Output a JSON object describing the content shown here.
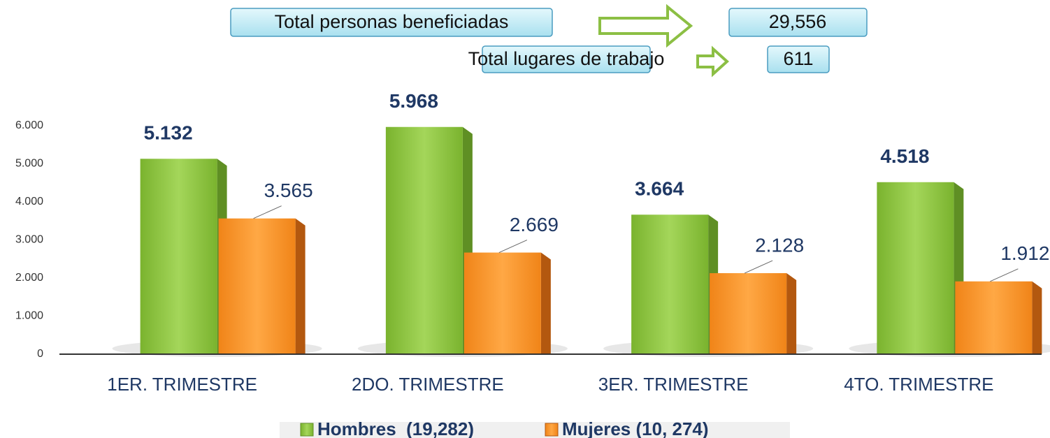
{
  "chart_data": {
    "type": "bar",
    "annotations": [
      "Total personas beneficiadas",
      "29,556",
      "Total lugares de trabajo",
      "611"
    ],
    "categories": [
      "1ER. TRIMESTRE",
      "2DO. TRIMESTRE",
      "3ER. TRIMESTRE",
      "4TO. TRIMESTRE"
    ],
    "series": [
      {
        "name": "Hombres  (19,282)",
        "color": "#8cc63f",
        "values": [
          5132,
          5968,
          3664,
          4518
        ],
        "value_labels": [
          "5.132",
          "5.968",
          "3.664",
          "4.518"
        ]
      },
      {
        "name": "Mujeres (10, 274)",
        "color": "#f7941d",
        "values": [
          3565,
          2669,
          2128,
          1912
        ],
        "value_labels": [
          "3.565",
          "2.669",
          "2.128",
          "1.912"
        ]
      }
    ],
    "ylim": [
      0,
      6000
    ],
    "yticks": [
      0,
      {
        "value": 1000,
        "label": "1.000"
      },
      {
        "value": 2000,
        "label": "2.000"
      },
      {
        "value": 3000,
        "label": "3.000"
      },
      {
        "value": 4000,
        "label": "4.000"
      },
      {
        "value": 5000,
        "label": "5.000"
      },
      {
        "value": 6000,
        "label": "6.000"
      }
    ],
    "legend": "bottom"
  }
}
